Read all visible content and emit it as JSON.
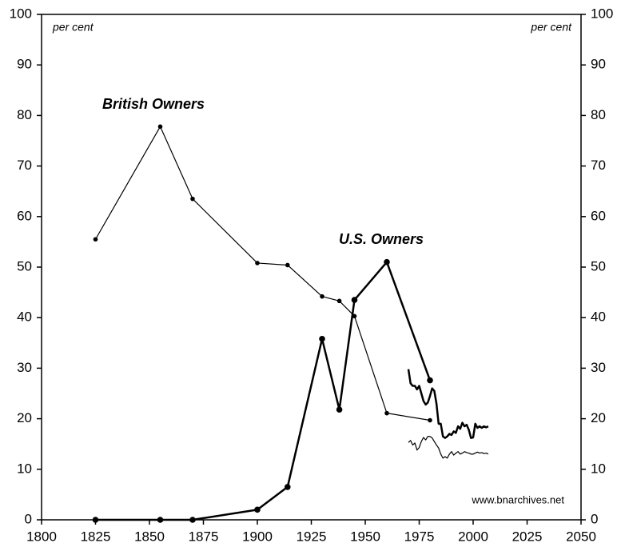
{
  "chart_data": {
    "type": "line",
    "xlim": [
      1800,
      2050
    ],
    "xticks": [
      1800,
      1825,
      1850,
      1875,
      1900,
      1925,
      1950,
      1975,
      2000,
      2025,
      2050
    ],
    "ylim": [
      0,
      100
    ],
    "yticks": [
      0,
      10,
      20,
      30,
      40,
      50,
      60,
      70,
      80,
      90,
      100
    ],
    "y2lim": [
      0,
      100
    ],
    "y2ticks": [
      0,
      10,
      20,
      30,
      40,
      50,
      60,
      70,
      80,
      90,
      100
    ],
    "y_label": "per cent",
    "y2_label": "per cent",
    "source": "www.bnarchives.net",
    "series": [
      {
        "name": "British Owners",
        "color": "#000000",
        "markers": true,
        "line_width": 1.2,
        "x": [
          1825,
          1855,
          1870,
          1900,
          1914,
          1930,
          1938,
          1945,
          1960,
          1980
        ],
        "values": [
          55.5,
          77.8,
          63.5,
          50.8,
          50.4,
          44.2,
          43.3,
          40.3,
          21.1,
          19.7
        ]
      },
      {
        "name": "U.S. Owners",
        "color": "#000000",
        "markers": true,
        "line_width": 2.5,
        "x": [
          1825,
          1855,
          1870,
          1900,
          1914,
          1930,
          1938,
          1945,
          1960,
          1980
        ],
        "values": [
          0,
          0,
          0,
          2,
          6.5,
          35.8,
          21.8,
          43.5,
          51,
          27.6
        ]
      },
      {
        "color": "#000000",
        "markers": false,
        "line_width": 2.5,
        "x": [
          1970,
          1971,
          1972,
          1973,
          1974,
          1975,
          1976,
          1977,
          1978,
          1979,
          1980,
          1981,
          1982,
          1983,
          1984,
          1985,
          1986,
          1987,
          1988,
          1989,
          1990,
          1991,
          1992,
          1993,
          1994,
          1995,
          1996,
          1997,
          1998,
          1999,
          2000,
          2001,
          2002,
          2003,
          2004,
          2005,
          2006,
          2007
        ],
        "values": [
          29.8,
          27,
          26.5,
          26.5,
          25.8,
          26.5,
          25,
          23.5,
          22.8,
          23.2,
          24.5,
          26,
          25.5,
          23,
          19,
          19,
          16.5,
          16.2,
          16.5,
          17,
          16.8,
          17.5,
          17.2,
          18.5,
          18,
          19.2,
          18.5,
          18.8,
          17.8,
          16.2,
          16.3,
          19,
          18.2,
          18.5,
          18.2,
          18.5,
          18.3,
          18.5
        ]
      },
      {
        "color": "#000000",
        "markers": false,
        "line_width": 1.2,
        "x": [
          1970,
          1971,
          1972,
          1973,
          1974,
          1975,
          1976,
          1977,
          1978,
          1979,
          1980,
          1981,
          1982,
          1983,
          1984,
          1985,
          1986,
          1987,
          1988,
          1989,
          1990,
          1991,
          1992,
          1993,
          1994,
          1995,
          1996,
          1997,
          1998,
          1999,
          2000,
          2001,
          2002,
          2003,
          2004,
          2005,
          2006,
          2007
        ],
        "values": [
          15.3,
          15.7,
          14.8,
          15.2,
          13.8,
          14.3,
          15.5,
          16.3,
          15.8,
          16.5,
          16.5,
          16.2,
          15.5,
          14.8,
          14.2,
          13,
          12.2,
          12.5,
          12.2,
          13,
          13.5,
          12.8,
          13.2,
          13.5,
          13,
          13.2,
          13.5,
          13.3,
          13.2,
          13,
          13,
          13.2,
          13.4,
          13.2,
          13.3,
          13.1,
          13.2,
          13
        ]
      }
    ]
  }
}
